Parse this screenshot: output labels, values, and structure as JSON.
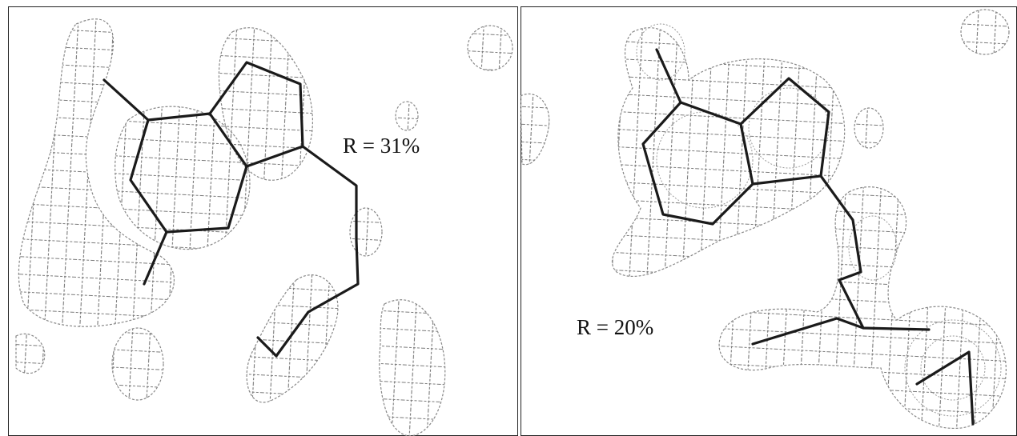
{
  "panels": [
    {
      "label": "R = 31%"
    },
    {
      "label": "R = 20%"
    }
  ]
}
